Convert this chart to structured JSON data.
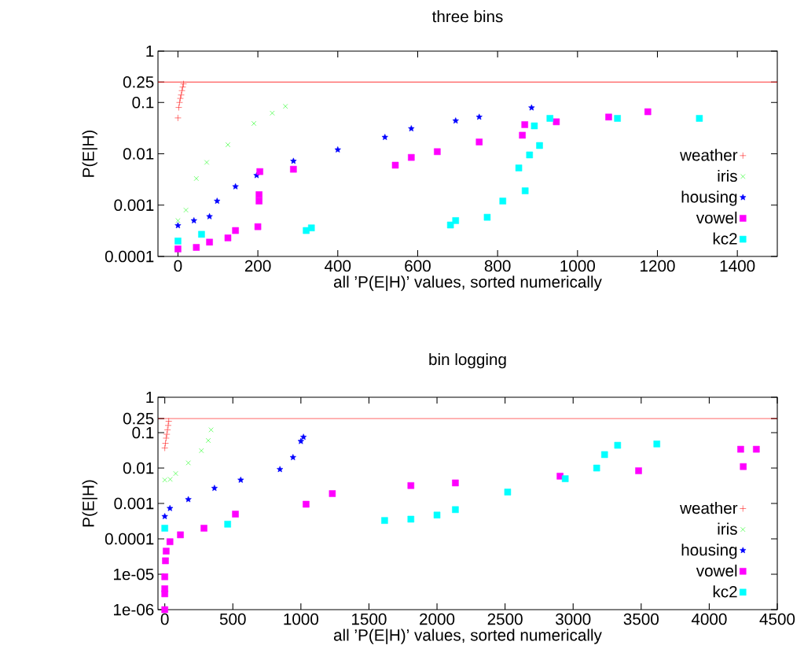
{
  "chart_data": [
    {
      "type": "scatter",
      "title": "three bins",
      "xlabel": "all ’P(E|H)’ values, sorted numerically",
      "ylabel": "P(E|H)",
      "log": "y",
      "legend": "bottom right",
      "xlim": [
        -50,
        1500
      ],
      "xticks": [
        0,
        200,
        400,
        600,
        800,
        1000,
        1200,
        1400
      ],
      "ylim": [
        0.0001,
        1
      ],
      "yticks": [
        0.0001,
        0.001,
        0.01,
        0.1,
        0.25,
        1
      ],
      "ref_lines": [
        {
          "axis": "y",
          "value": 0.25,
          "color": "#ff0000"
        }
      ],
      "series": [
        {
          "name": "weather",
          "color": "#ff0000",
          "marker": "plus",
          "x": [
            0,
            2,
            4,
            6,
            8,
            10,
            12,
            14
          ],
          "values": [
            0.05,
            0.08,
            0.1,
            0.12,
            0.14,
            0.17,
            0.2,
            0.23
          ]
        },
        {
          "name": "iris",
          "color": "#00ff00",
          "marker": "cross",
          "x": [
            0,
            20,
            46,
            72,
            125,
            190,
            236,
            269
          ],
          "values": [
            0.0005,
            0.0008,
            0.0033,
            0.0068,
            0.015,
            0.039,
            0.062,
            0.084
          ]
        },
        {
          "name": "housing",
          "color": "#0000ff",
          "marker": "star",
          "x": [
            0,
            40,
            79,
            98,
            144,
            197,
            289,
            400,
            518,
            584,
            695,
            754,
            885
          ],
          "values": [
            0.0004,
            0.0005,
            0.0006,
            0.0012,
            0.0023,
            0.0038,
            0.0072,
            0.012,
            0.021,
            0.031,
            0.044,
            0.052,
            0.079
          ]
        },
        {
          "name": "vowel",
          "color": "#ff00ff",
          "marker": "square",
          "x": [
            0,
            46,
            79,
            125,
            144,
            200,
            203,
            203,
            205,
            289,
            544,
            584,
            649,
            754,
            862,
            868,
            947,
            1078,
            1176
          ],
          "values": [
            0.00014,
            0.00015,
            0.00019,
            0.00023,
            0.00032,
            0.00038,
            0.0012,
            0.0016,
            0.0045,
            0.005,
            0.006,
            0.0085,
            0.011,
            0.017,
            0.023,
            0.037,
            0.042,
            0.052,
            0.066
          ]
        },
        {
          "name": "kc2",
          "color": "#00ffff",
          "marker": "square",
          "x": [
            0,
            59,
            321,
            334,
            682,
            695,
            774,
            813,
            853,
            869,
            880,
            892,
            905,
            931,
            1100,
            1305
          ],
          "values": [
            0.0002,
            0.00027,
            0.00032,
            0.00036,
            0.00041,
            0.0005,
            0.00058,
            0.0012,
            0.0053,
            0.0019,
            0.0095,
            0.035,
            0.0145,
            0.049,
            0.049,
            0.049
          ]
        }
      ]
    },
    {
      "type": "scatter",
      "title": "bin logging",
      "xlabel": "all ’P(E|H)’ values, sorted numerically",
      "ylabel": "P(E|H)",
      "log": "y",
      "legend": "bottom right",
      "xlim": [
        -50,
        4500
      ],
      "xticks": [
        0,
        500,
        1000,
        1500,
        2000,
        2500,
        3000,
        3500,
        4000,
        4500
      ],
      "ylim": [
        1e-06,
        1
      ],
      "yticks": [
        {
          "value": 1e-06,
          "label": "1e-06"
        },
        {
          "value": 1e-05,
          "label": "1e-05"
        },
        0.0001,
        0.001,
        0.01,
        0.1,
        0.25,
        1
      ],
      "ref_lines": [
        {
          "axis": "y",
          "value": 0.25,
          "color": "#ff0000"
        }
      ],
      "series": [
        {
          "name": "weather",
          "color": "#ff0000",
          "marker": "plus",
          "x": [
            0,
            5,
            10,
            15,
            20,
            25,
            29
          ],
          "values": [
            0.037,
            0.05,
            0.07,
            0.09,
            0.12,
            0.16,
            0.21
          ]
        },
        {
          "name": "iris",
          "color": "#00ff00",
          "marker": "cross",
          "x": [
            0,
            40,
            80,
            173,
            269,
            320,
            340
          ],
          "values": [
            0.0046,
            0.0048,
            0.007,
            0.014,
            0.031,
            0.06,
            0.12
          ]
        },
        {
          "name": "housing",
          "color": "#0000ff",
          "marker": "star",
          "x": [
            0,
            38,
            173,
            365,
            558,
            846,
            942,
            1000,
            1019
          ],
          "values": [
            0.00043,
            0.00073,
            0.0013,
            0.0027,
            0.0046,
            0.0092,
            0.02,
            0.057,
            0.075
          ]
        },
        {
          "name": "vowel",
          "color": "#ff00ff",
          "marker": "square",
          "x": [
            0,
            0,
            0,
            0,
            5,
            10,
            38,
            115,
            288,
            519,
            1038,
            1231,
            1808,
            2135,
            2904,
            3481,
            4250,
            4231,
            4346
          ],
          "values": [
            1e-06,
            2.8e-06,
            3.9e-06,
            8.5e-06,
            2.4e-05,
            4.5e-05,
            8.3e-05,
            0.00013,
            0.0002,
            0.0005,
            0.00095,
            0.0019,
            0.0032,
            0.0038,
            0.0059,
            0.0084,
            0.011,
            0.034,
            0.034
          ]
        },
        {
          "name": "kc2",
          "color": "#00ffff",
          "marker": "square",
          "x": [
            0,
            462,
            1615,
            1808,
            2000,
            2135,
            2519,
            2942,
            3173,
            3231,
            3327,
            3615
          ],
          "values": [
            0.0002,
            0.00026,
            0.00033,
            0.00036,
            0.00047,
            0.00067,
            0.0021,
            0.005,
            0.01,
            0.024,
            0.044,
            0.048
          ]
        }
      ]
    }
  ]
}
